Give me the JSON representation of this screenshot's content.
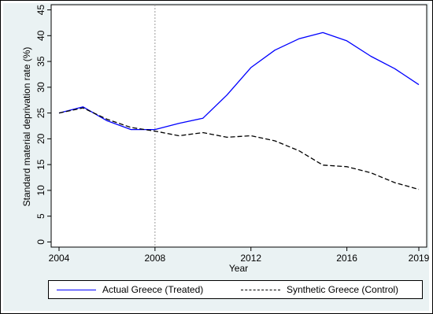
{
  "chart_data": {
    "type": "line",
    "title": "",
    "xlabel": "Year",
    "ylabel": "Standard material deprivation rate (%)",
    "x": [
      2004,
      2005,
      2006,
      2007,
      2008,
      2009,
      2010,
      2011,
      2012,
      2013,
      2014,
      2015,
      2016,
      2017,
      2018,
      2019
    ],
    "xticks": [
      "2004",
      "2008",
      "2012",
      "2016",
      "2019"
    ],
    "yticks": [
      "0",
      "5",
      "10",
      "15",
      "20",
      "25",
      "30",
      "35",
      "40",
      "45"
    ],
    "xlim": [
      2004,
      2019
    ],
    "ylim": [
      -1,
      46
    ],
    "vline_x": 2008,
    "legend_position": "bottom",
    "grid": false,
    "series": [
      {
        "name": "Actual Greece (Treated)",
        "color": "#0000ff",
        "dash": "solid",
        "values": [
          25.0,
          26.2,
          23.5,
          21.8,
          21.8,
          23.0,
          24.0,
          28.5,
          33.8,
          37.2,
          39.4,
          40.6,
          39.0,
          36.0,
          33.6,
          30.5
        ]
      },
      {
        "name": "Synthetic Greece (Control)",
        "color": "#000000",
        "dash": "dashed",
        "values": [
          25.0,
          26.0,
          23.8,
          22.2,
          21.5,
          20.6,
          21.2,
          20.3,
          20.6,
          19.6,
          17.7,
          14.9,
          14.6,
          13.4,
          11.5,
          10.2
        ]
      }
    ]
  }
}
